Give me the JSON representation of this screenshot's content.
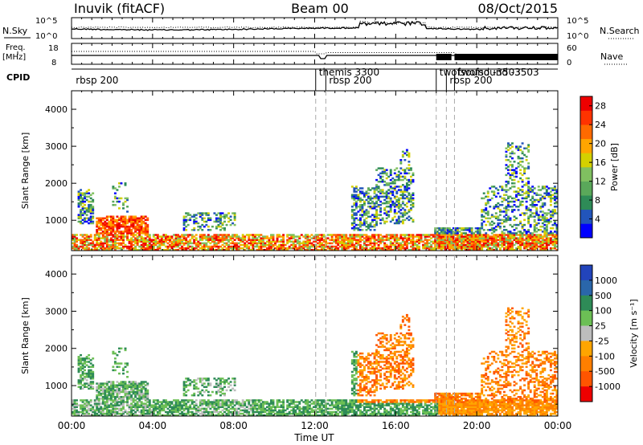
{
  "header": {
    "station": "Inuvik (fitACF)",
    "beam": "Beam 00",
    "date": "08/Oct/2015"
  },
  "strip": {
    "nsky_label": "N.Sky",
    "nsky_top": "10^5",
    "nsky_bottom": "10^0",
    "nsearch_label": "N.Search",
    "nsearch_top": "10^5",
    "nsearch_bottom": "10^0",
    "freq_label": "Freq.",
    "freq_unit": "[MHz]",
    "freq_top": "18",
    "freq_bottom": "8",
    "nave_label": "Nave",
    "nave_top": "60",
    "nave_bottom": "0",
    "cpid_label": "CPID"
  },
  "cpid_entries": [
    {
      "label": "rbsp 200",
      "time_h": 0.05
    },
    {
      "label": "themis 3300",
      "time_h": 12.05
    },
    {
      "label": "rbsp 200",
      "time_h": 12.55
    },
    {
      "label": "twofsound -3503",
      "time_h": 18.0
    },
    {
      "label": "rbsp 200",
      "time_h": 18.5
    },
    {
      "label": "twofsound -3503",
      "time_h": 18.9
    }
  ],
  "colors": {
    "power": [
      "#0000ff",
      "#2255bb",
      "#2e8b57",
      "#5aa85a",
      "#80c060",
      "#d4d000",
      "#ffa500",
      "#ff6a00",
      "#ff3300",
      "#ee0000"
    ],
    "velocity": [
      "#2244bb",
      "#2a66aa",
      "#2e8b57",
      "#6cbf55",
      "#bdbdbd",
      "#ffa500",
      "#ff7f00",
      "#ff5500",
      "#ee0000"
    ]
  },
  "chart_data": [
    {
      "type": "heatmap",
      "name": "Power",
      "ylabel": "Slant Range [km]",
      "ylim": [
        180,
        4500
      ],
      "yticks": [
        "1000",
        "2000",
        "3000",
        "4000"
      ],
      "colorbar_label": "Power [dB]",
      "colorbar_ticks": [
        "4",
        "8",
        "12",
        "16",
        "20",
        "24",
        "28"
      ],
      "colorbar_range": [
        0,
        30
      ]
    },
    {
      "type": "heatmap",
      "name": "Velocity",
      "ylabel": "Slant Range [km]",
      "ylim": [
        180,
        4500
      ],
      "yticks": [
        "1000",
        "2000",
        "3000",
        "4000"
      ],
      "colorbar_label": "Velocity [m s⁻¹]",
      "colorbar_ticks": [
        "1000",
        "500",
        "100",
        "25",
        "-25",
        "-100",
        "-500",
        "-1000"
      ]
    }
  ],
  "x_axis": {
    "label": "Time UT",
    "ticks": [
      "00:00",
      "04:00",
      "08:00",
      "12:00",
      "16:00",
      "20:00",
      "00:00"
    ],
    "range_h": [
      0,
      24
    ]
  }
}
